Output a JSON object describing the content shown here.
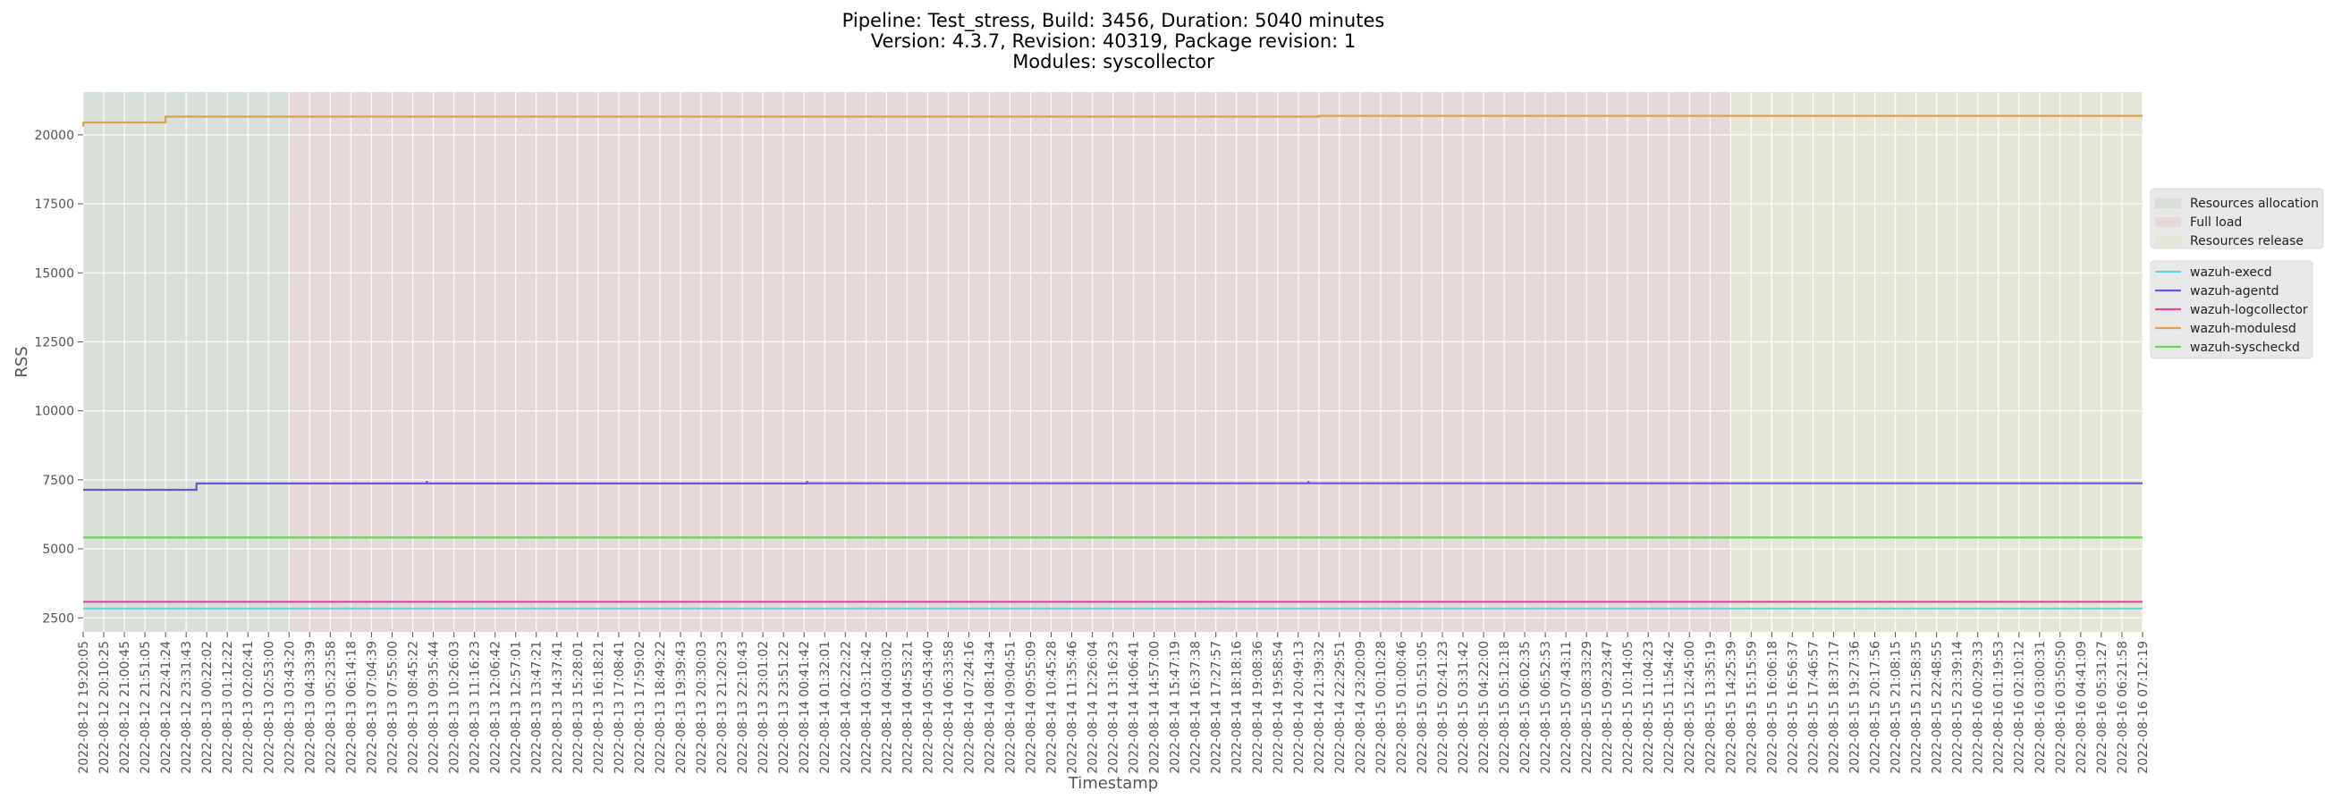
{
  "chart_data": {
    "type": "line",
    "title_lines": [
      "Pipeline: Test_stress, Build: 3456, Duration: 5040 minutes",
      "Version: 4.3.7, Revision: 40319, Package revision: 1",
      "Modules: syscollector"
    ],
    "xlabel": "Timestamp",
    "ylabel": "RSS",
    "ylim": [
      1990,
      21550
    ],
    "yticks": [
      2500,
      5000,
      7500,
      10000,
      12500,
      15000,
      17500,
      20000
    ],
    "grid": true,
    "xticks": [
      "2022-08-12 19:20:05",
      "2022-08-12 20:10:25",
      "2022-08-12 21:00:45",
      "2022-08-12 21:51:05",
      "2022-08-12 22:41:24",
      "2022-08-12 23:31:43",
      "2022-08-13 00:22:02",
      "2022-08-13 01:12:22",
      "2022-08-13 02:02:41",
      "2022-08-13 02:53:00",
      "2022-08-13 03:43:20",
      "2022-08-13 04:33:39",
      "2022-08-13 05:23:58",
      "2022-08-13 06:14:18",
      "2022-08-13 07:04:39",
      "2022-08-13 07:55:00",
      "2022-08-13 08:45:22",
      "2022-08-13 09:35:44",
      "2022-08-13 10:26:03",
      "2022-08-13 11:16:23",
      "2022-08-13 12:06:42",
      "2022-08-13 12:57:01",
      "2022-08-13 13:47:21",
      "2022-08-13 14:37:41",
      "2022-08-13 15:28:01",
      "2022-08-13 16:18:21",
      "2022-08-13 17:08:41",
      "2022-08-13 17:59:02",
      "2022-08-13 18:49:22",
      "2022-08-13 19:39:43",
      "2022-08-13 20:30:03",
      "2022-08-13 21:20:23",
      "2022-08-13 22:10:43",
      "2022-08-13 23:01:02",
      "2022-08-13 23:51:22",
      "2022-08-14 00:41:42",
      "2022-08-14 01:32:01",
      "2022-08-14 02:22:22",
      "2022-08-14 03:12:42",
      "2022-08-14 04:03:02",
      "2022-08-14 04:53:21",
      "2022-08-14 05:43:40",
      "2022-08-14 06:33:58",
      "2022-08-14 07:24:16",
      "2022-08-14 08:14:34",
      "2022-08-14 09:04:51",
      "2022-08-14 09:55:09",
      "2022-08-14 10:45:28",
      "2022-08-14 11:35:46",
      "2022-08-14 12:26:04",
      "2022-08-14 13:16:23",
      "2022-08-14 14:06:41",
      "2022-08-14 14:57:00",
      "2022-08-14 15:47:19",
      "2022-08-14 16:37:38",
      "2022-08-14 17:27:57",
      "2022-08-14 18:18:16",
      "2022-08-14 19:08:36",
      "2022-08-14 19:58:54",
      "2022-08-14 20:49:13",
      "2022-08-14 21:39:32",
      "2022-08-14 22:29:51",
      "2022-08-14 23:20:09",
      "2022-08-15 00:10:28",
      "2022-08-15 01:00:46",
      "2022-08-15 01:51:05",
      "2022-08-15 02:41:23",
      "2022-08-15 03:31:42",
      "2022-08-15 04:22:00",
      "2022-08-15 05:12:18",
      "2022-08-15 06:02:35",
      "2022-08-15 06:52:53",
      "2022-08-15 07:43:11",
      "2022-08-15 08:33:29",
      "2022-08-15 09:23:47",
      "2022-08-15 10:14:05",
      "2022-08-15 11:04:23",
      "2022-08-15 11:54:42",
      "2022-08-15 12:45:00",
      "2022-08-15 13:35:19",
      "2022-08-15 14:25:39",
      "2022-08-15 15:15:59",
      "2022-08-15 16:06:18",
      "2022-08-15 16:56:37",
      "2022-08-15 17:46:57",
      "2022-08-15 18:37:17",
      "2022-08-15 19:27:36",
      "2022-08-15 20:17:56",
      "2022-08-15 21:08:15",
      "2022-08-15 21:58:35",
      "2022-08-15 22:48:55",
      "2022-08-15 23:39:14",
      "2022-08-16 00:29:33",
      "2022-08-16 01:19:53",
      "2022-08-16 02:10:12",
      "2022-08-16 03:00:31",
      "2022-08-16 03:50:50",
      "2022-08-16 04:41:09",
      "2022-08-16 05:31:27",
      "2022-08-16 06:21:58",
      "2022-08-16 07:12:19"
    ],
    "phases": [
      {
        "name": "Resources allocation",
        "start": "2022-08-12 19:20:05",
        "end": "2022-08-13 03:43:20",
        "color": "#d9dfd9"
      },
      {
        "name": "Full load",
        "start": "2022-08-13 03:43:20",
        "end": "2022-08-15 14:25:39",
        "color": "#e5d9da"
      },
      {
        "name": "Resources release",
        "start": "2022-08-15 14:25:39",
        "end": "2022-08-16 07:12:19",
        "color": "#e5e5d8"
      }
    ],
    "series": [
      {
        "name": "wazuh-execd",
        "color": "#5fd7dc",
        "points": [
          [
            "2022-08-12 19:20:05",
            2840
          ],
          [
            "2022-08-16 07:12:19",
            2840
          ]
        ]
      },
      {
        "name": "wazuh-agentd",
        "color": "#6a55d8",
        "points": [
          [
            "2022-08-12 19:20:05",
            7140
          ],
          [
            "2022-08-12 23:57:00",
            7140
          ],
          [
            "2022-08-12 23:57:00",
            7370
          ],
          [
            "2022-08-13 09:19:00",
            7370
          ],
          [
            "2022-08-13 09:20:00",
            7450
          ],
          [
            "2022-08-13 09:21:00",
            7370
          ],
          [
            "2022-08-14 00:48:00",
            7370
          ],
          [
            "2022-08-14 00:49:00",
            7450
          ],
          [
            "2022-08-14 00:50:00",
            7375
          ],
          [
            "2022-08-14 21:13:00",
            7375
          ],
          [
            "2022-08-14 21:14:00",
            7450
          ],
          [
            "2022-08-14 21:15:00",
            7375
          ],
          [
            "2022-08-16 07:12:19",
            7375
          ]
        ]
      },
      {
        "name": "wazuh-logcollector",
        "color": "#e0479e",
        "points": [
          [
            "2022-08-12 19:20:05",
            3080
          ],
          [
            "2022-08-16 07:12:19",
            3080
          ]
        ]
      },
      {
        "name": "wazuh-modulesd",
        "color": "#e0a24e",
        "points": [
          [
            "2022-08-12 19:20:05",
            20300
          ],
          [
            "2022-08-12 19:21:00",
            20450
          ],
          [
            "2022-08-12 22:41:24",
            20450
          ],
          [
            "2022-08-12 22:41:24",
            20660
          ],
          [
            "2022-08-14 21:39:32",
            20660
          ],
          [
            "2022-08-14 21:39:32",
            20690
          ],
          [
            "2022-08-16 07:12:19",
            20690
          ]
        ]
      },
      {
        "name": "wazuh-syscheckd",
        "color": "#64d854",
        "points": [
          [
            "2022-08-12 19:20:05",
            5410
          ],
          [
            "2022-08-16 07:12:19",
            5410
          ]
        ]
      }
    ],
    "legend_placement": "right"
  }
}
